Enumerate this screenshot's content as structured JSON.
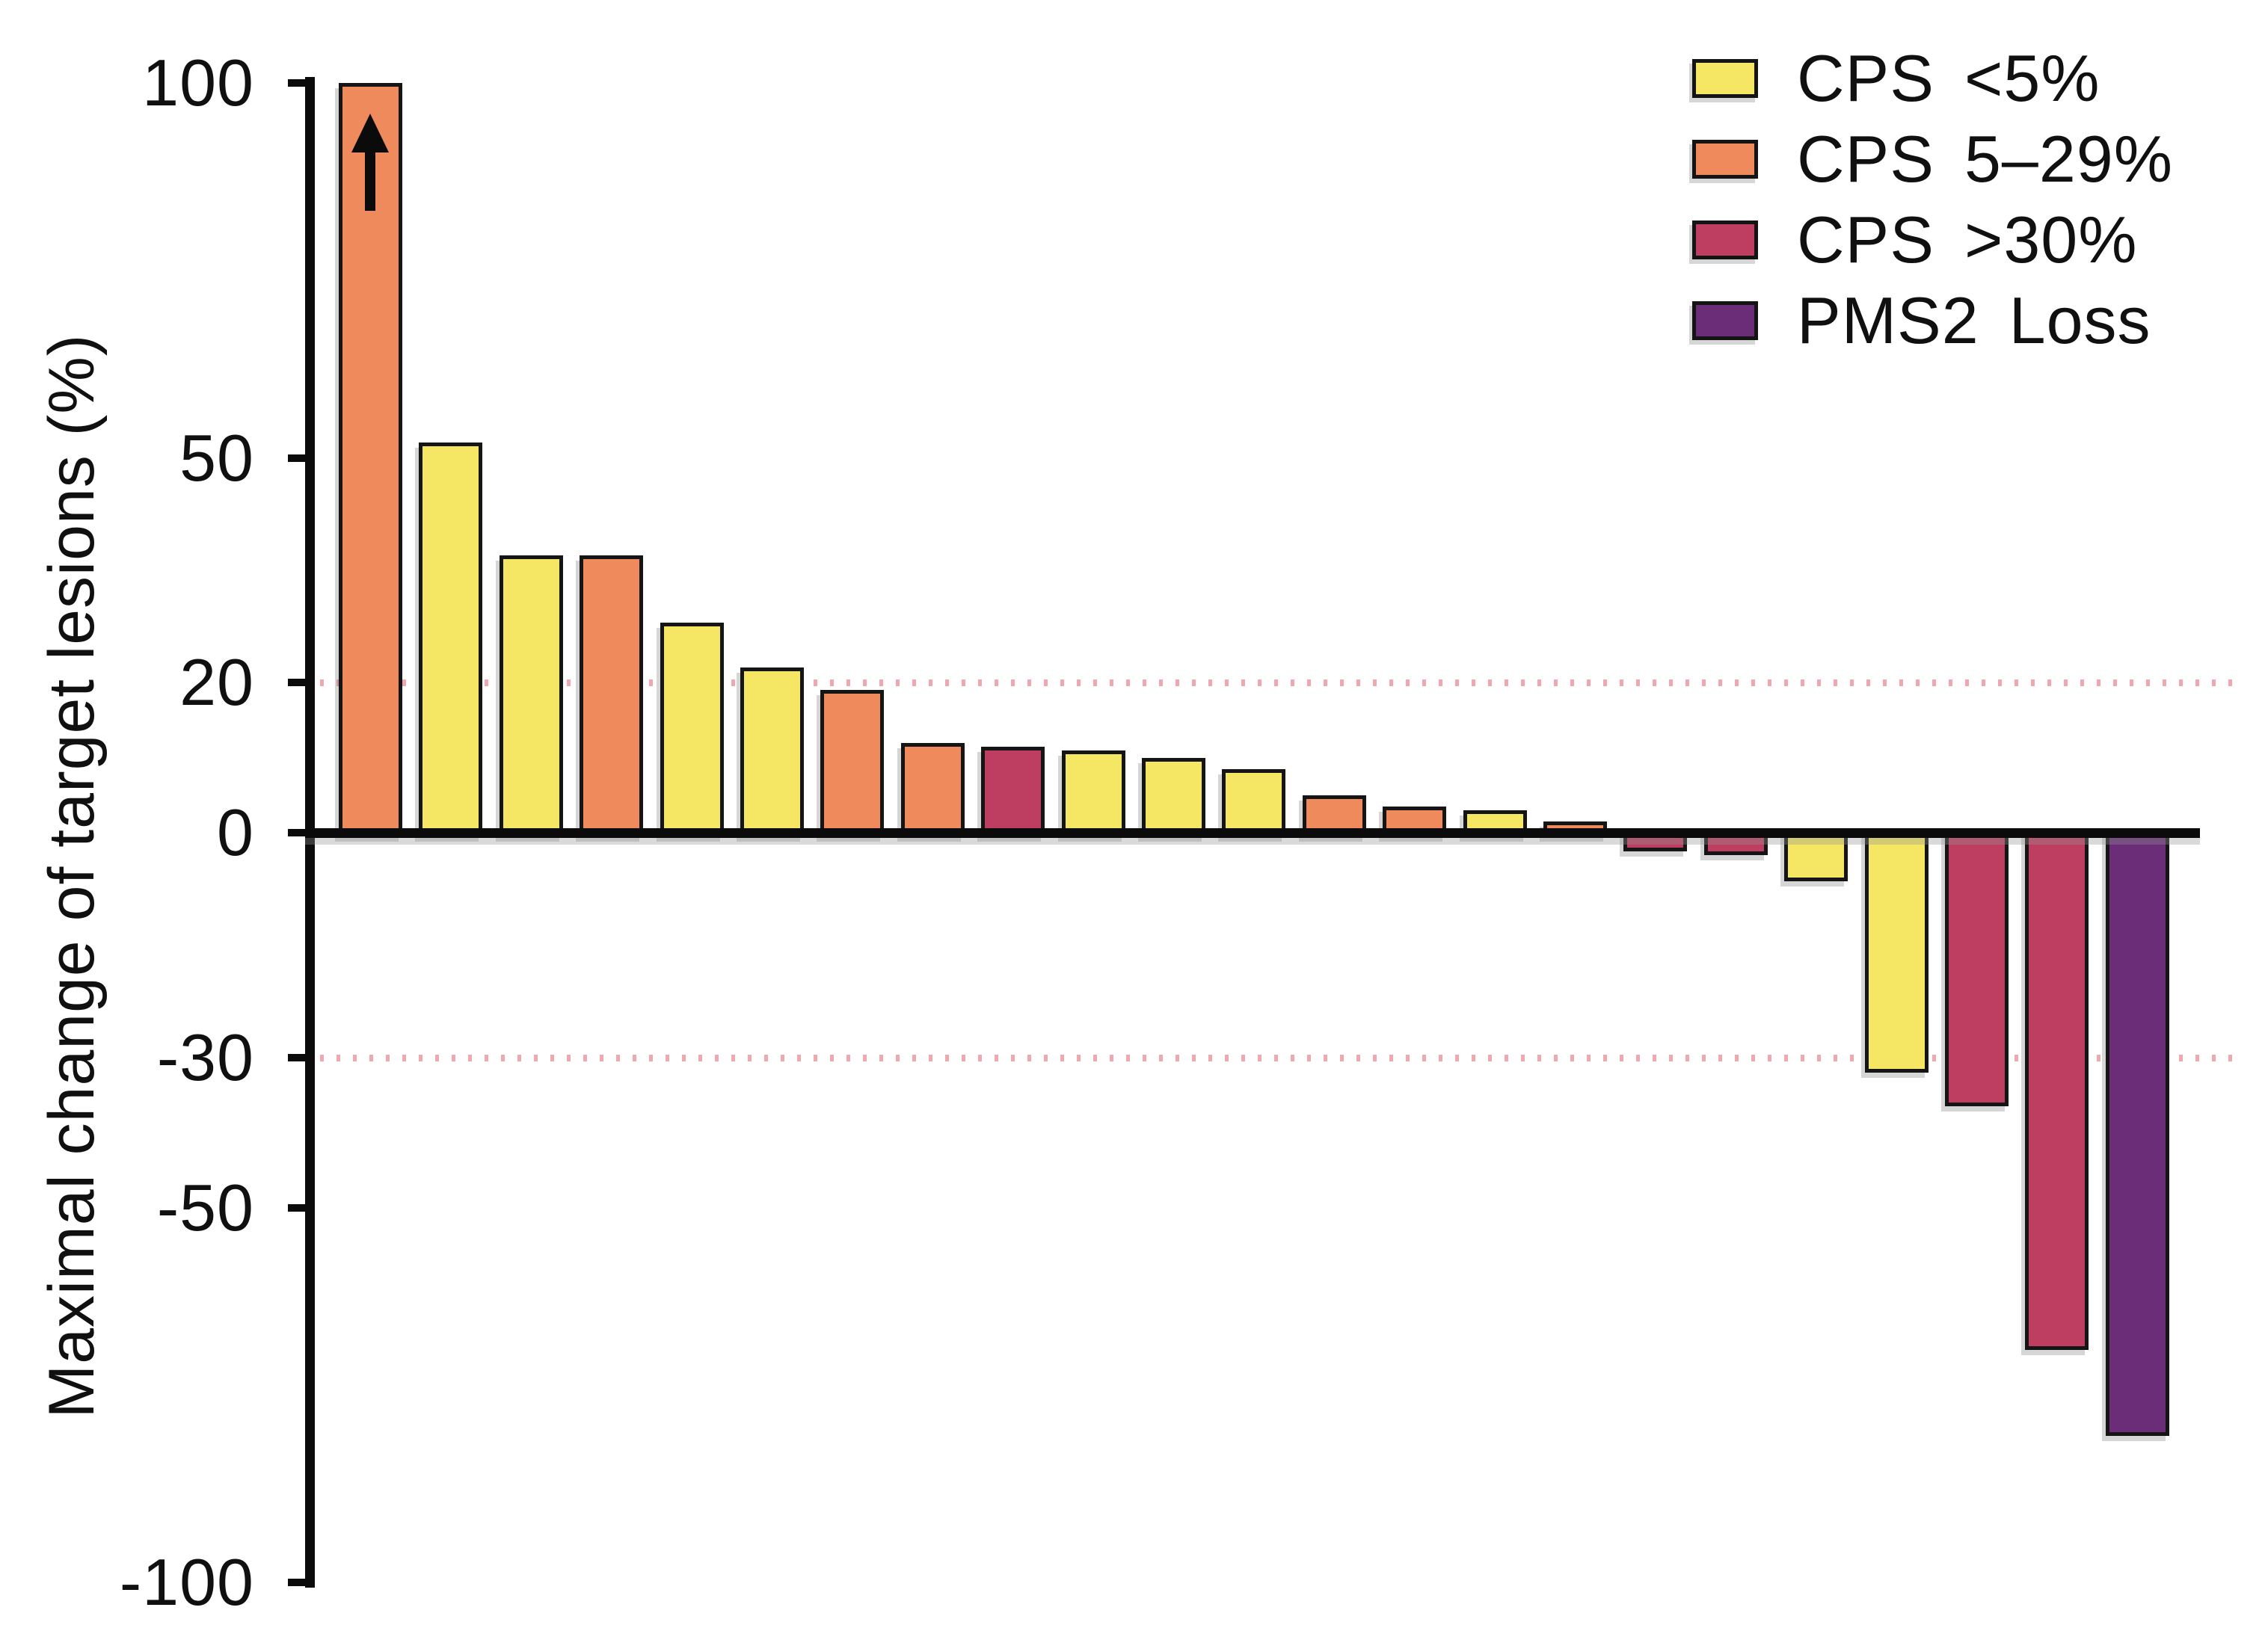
{
  "chart_data": {
    "type": "bar",
    "subtype": "waterfall",
    "title": "",
    "xlabel": "",
    "ylabel": "Maximal change of target lesions (%)",
    "ylim": [
      -100,
      100
    ],
    "yticks": [
      100,
      50,
      20,
      0,
      -30,
      -50,
      -100
    ],
    "reference_dotted_lines": [
      20,
      -30
    ],
    "grid": "off",
    "legend_position": "top-right",
    "bars": [
      {
        "value": 100,
        "category": "cps_5_29",
        "capped_above": true
      },
      {
        "value": 52,
        "category": "cps_lt5"
      },
      {
        "value": 37,
        "category": "cps_lt5"
      },
      {
        "value": 37,
        "category": "cps_5_29"
      },
      {
        "value": 28,
        "category": "cps_lt5"
      },
      {
        "value": 22,
        "category": "cps_lt5"
      },
      {
        "value": 19,
        "category": "cps_5_29"
      },
      {
        "value": 12,
        "category": "cps_5_29"
      },
      {
        "value": 11.5,
        "category": "cps_gt30"
      },
      {
        "value": 11,
        "category": "cps_lt5"
      },
      {
        "value": 10,
        "category": "cps_lt5"
      },
      {
        "value": 8.5,
        "category": "cps_lt5"
      },
      {
        "value": 5,
        "category": "cps_5_29"
      },
      {
        "value": 3.5,
        "category": "cps_5_29"
      },
      {
        "value": 3,
        "category": "cps_lt5"
      },
      {
        "value": 1.5,
        "category": "cps_5_29"
      },
      {
        "value": -2.5,
        "category": "cps_gt30"
      },
      {
        "value": -3,
        "category": "cps_gt30"
      },
      {
        "value": -6.5,
        "category": "cps_lt5"
      },
      {
        "value": -32,
        "category": "cps_lt5"
      },
      {
        "value": -36.5,
        "category": "cps_gt30"
      },
      {
        "value": -69,
        "category": "cps_gt30"
      },
      {
        "value": -80.5,
        "category": "pms2_loss"
      }
    ],
    "annotations": [
      {
        "bar_index": 0,
        "symbol": "↑",
        "meaning": "value exceeds axis top"
      }
    ]
  },
  "palette": {
    "cps_lt5": "#F5E763",
    "cps_5_29": "#EE8A5C",
    "cps_gt30": "#BE3E62",
    "pms2_loss": "#6B2C78",
    "dotted_line": "#EFA8B0",
    "axis": "#0B0B0B"
  },
  "legend": {
    "items": [
      {
        "name": "CPS",
        "range": "<5%",
        "category": "cps_lt5",
        "color": "#F5E763"
      },
      {
        "name": "CPS",
        "range": "5–29%",
        "category": "cps_5_29",
        "color": "#EE8A5C"
      },
      {
        "name": "CPS",
        "range": ">30%",
        "category": "cps_gt30",
        "color": "#BE3E62"
      },
      {
        "name": "PMS2",
        "range": "Loss",
        "category": "pms2_loss",
        "color": "#6B2C78"
      }
    ]
  }
}
